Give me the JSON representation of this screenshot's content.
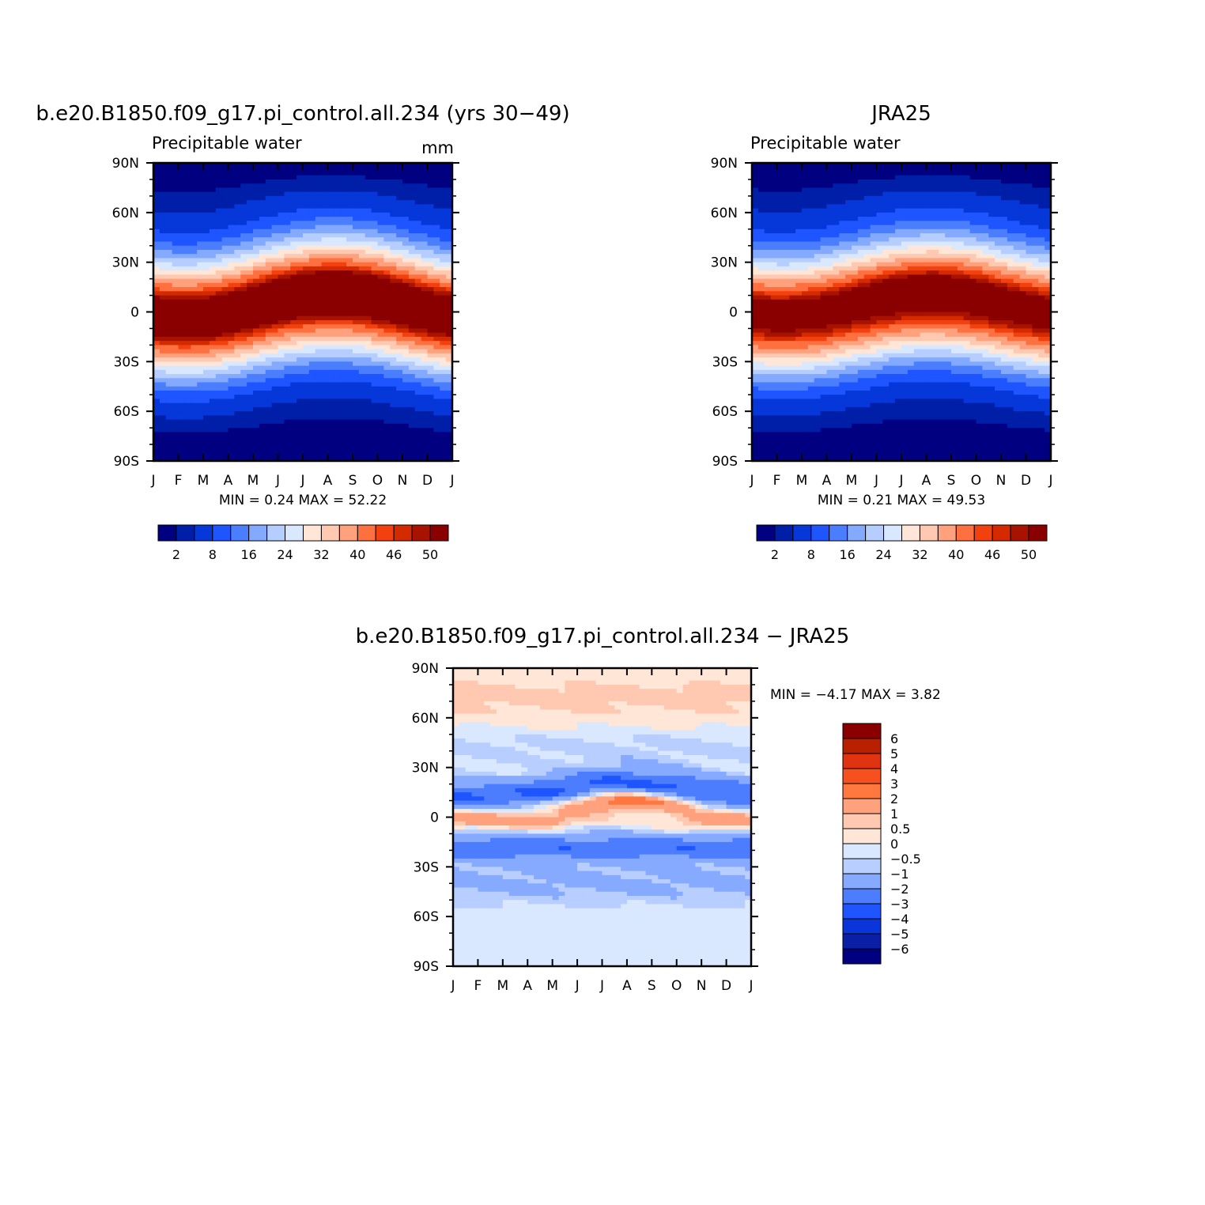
{
  "colors": {
    "abs_scale": [
      "#000080",
      "#001fa8",
      "#0537d9",
      "#1f55ff",
      "#4a7eff",
      "#84aaff",
      "#b6cdff",
      "#d9e8ff",
      "#ffe6d6",
      "#ffc8b0",
      "#ffa17c",
      "#ff7040",
      "#f2400f",
      "#d42a00",
      "#a81200",
      "#8a0000"
    ],
    "diff_scale": [
      "#000080",
      "#0a1fa6",
      "#0a35d8",
      "#1e55ff",
      "#4c7dff",
      "#86aaff",
      "#b7ceff",
      "#d9e8ff",
      "#ffe6d6",
      "#ffc8b0",
      "#ffa17c",
      "#ff7840",
      "#f5501e",
      "#e03410",
      "#b82000",
      "#8a0000"
    ]
  },
  "chart_data": [
    {
      "type": "heatmap",
      "title": "b.e20.B1850.f09_g17.pi_control.all.234 (yrs 30−49)",
      "subtitle_left": "Precipitable  water",
      "subtitle_right": "mm",
      "x_tick_labels": [
        "J",
        "F",
        "M",
        "A",
        "M",
        "J",
        "J",
        "A",
        "S",
        "O",
        "N",
        "D",
        "J"
      ],
      "y_tick_labels": [
        "90N",
        "60N",
        "30N",
        "0",
        "30S",
        "60S",
        "90S"
      ],
      "x_range": [
        0,
        12
      ],
      "y_range": [
        -90,
        90
      ],
      "stats_text": "MIN =    0.24  MAX =    52.22",
      "min": 0.24,
      "max": 52.22,
      "colorbar_labels": [
        "2",
        "8",
        "16",
        "24",
        "32",
        "40",
        "46",
        "50"
      ],
      "params": {
        "amp": 52.0,
        "seasonal_shift": 7.0,
        "hemi_asym": 0.9
      }
    },
    {
      "type": "heatmap",
      "title": "JRA25",
      "subtitle_left": "Precipitable  water",
      "subtitle_right": "",
      "x_tick_labels": [
        "J",
        "F",
        "M",
        "A",
        "M",
        "J",
        "J",
        "A",
        "S",
        "O",
        "N",
        "D",
        "J"
      ],
      "y_tick_labels": [
        "90N",
        "60N",
        "30N",
        "0",
        "30S",
        "60S",
        "90S"
      ],
      "x_range": [
        0,
        12
      ],
      "y_range": [
        -90,
        90
      ],
      "stats_text": "MIN =    0.21  MAX =    49.53",
      "min": 0.21,
      "max": 49.53,
      "colorbar_labels": [
        "2",
        "8",
        "16",
        "24",
        "32",
        "40",
        "46",
        "50"
      ],
      "params": {
        "amp": 49.5,
        "seasonal_shift": 6.0,
        "hemi_asym": 1.0
      }
    },
    {
      "type": "heatmap",
      "title": "b.e20.B1850.f09_g17.pi_control.all.234  −  JRA25",
      "x_tick_labels": [
        "J",
        "F",
        "M",
        "A",
        "M",
        "J",
        "J",
        "A",
        "S",
        "O",
        "N",
        "D",
        "J"
      ],
      "y_tick_labels": [
        "90N",
        "60N",
        "30N",
        "0",
        "30S",
        "60S",
        "90S"
      ],
      "x_range": [
        0,
        12
      ],
      "y_range": [
        -90,
        90
      ],
      "stats_text": "MIN =   −4.17  MAX =     3.82",
      "min": -4.17,
      "max": 3.82,
      "colorbar_labels": [
        "6",
        "5",
        "4",
        "3",
        "2",
        "1",
        "0.5",
        "0",
        "−0.5",
        "−1",
        "−2",
        "−3",
        "−4",
        "−5",
        "−6"
      ]
    }
  ]
}
